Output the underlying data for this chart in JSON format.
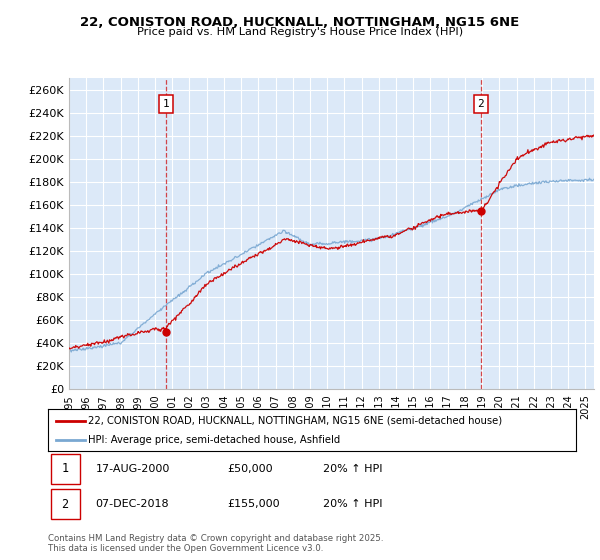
{
  "title": "22, CONISTON ROAD, HUCKNALL, NOTTINGHAM, NG15 6NE",
  "subtitle": "Price paid vs. HM Land Registry's House Price Index (HPI)",
  "ylim": [
    0,
    270000
  ],
  "yticks": [
    0,
    20000,
    40000,
    60000,
    80000,
    100000,
    120000,
    140000,
    160000,
    180000,
    200000,
    220000,
    240000,
    260000
  ],
  "ytick_labels": [
    "£0",
    "£20K",
    "£40K",
    "£60K",
    "£80K",
    "£100K",
    "£120K",
    "£140K",
    "£160K",
    "£180K",
    "£200K",
    "£220K",
    "£240K",
    "£260K"
  ],
  "plot_background": "#dce9f8",
  "red_line_color": "#cc0000",
  "blue_line_color": "#7aa8d2",
  "grid_color": "#ffffff",
  "legend_label_red": "22, CONISTON ROAD, HUCKNALL, NOTTINGHAM, NG15 6NE (semi-detached house)",
  "legend_label_blue": "HPI: Average price, semi-detached house, Ashfield",
  "annotation1_vline_x": 2000.63,
  "annotation1_label": "1",
  "annotation2_vline_x": 2018.93,
  "annotation2_label": "2",
  "note_text": "Contains HM Land Registry data © Crown copyright and database right 2025.\nThis data is licensed under the Open Government Licence v3.0.",
  "table_data": [
    [
      "1",
      "17-AUG-2000",
      "£50,000",
      "20% ↑ HPI"
    ],
    [
      "2",
      "07-DEC-2018",
      "£155,000",
      "20% ↑ HPI"
    ]
  ],
  "xmin": 1995.0,
  "xmax": 2025.5
}
